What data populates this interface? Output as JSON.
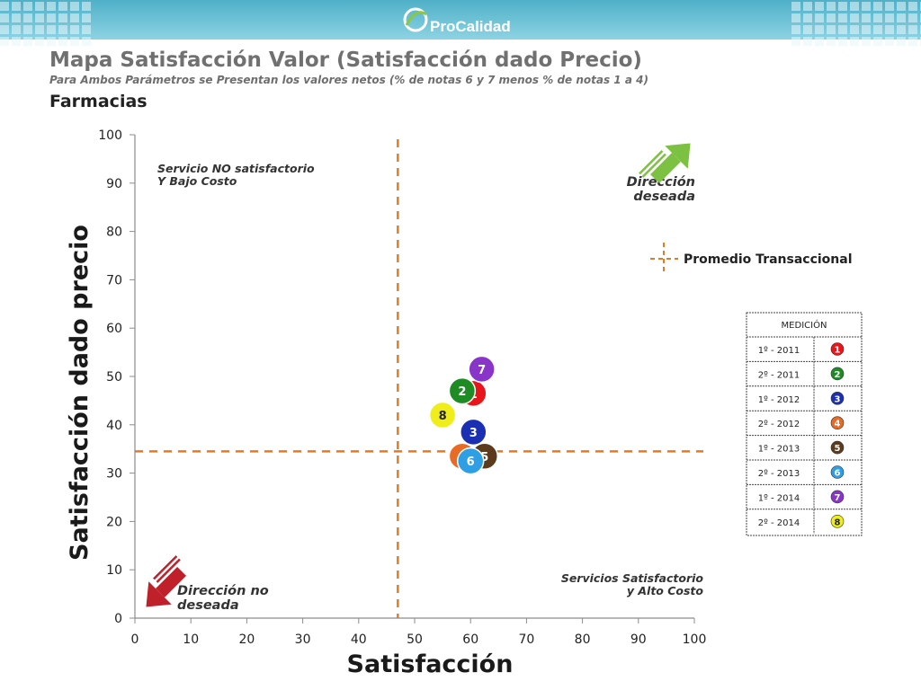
{
  "header": {
    "brand": "ProCalidad",
    "brand_prefix": "Pro",
    "brand_suffix": "Calidad",
    "title": "Mapa Satisfacción Valor (Satisfacción dado Precio)",
    "subtitle": "Para Ambos Parámetros se Presentan los valores netos (% de notas 6 y 7 menos % de notas 1 a 4)",
    "section": "Farmacias"
  },
  "colors": {
    "banner_teal": "#5bbad1",
    "brand_green": "#8fc640",
    "guide_line": "#e07b2a",
    "arrow_green": "#7dc142",
    "arrow_red": "#c0202a"
  },
  "quadrants": {
    "top_left": [
      "Servicio NO satisfactorio",
      "Y Bajo Costo"
    ],
    "bottom_right": [
      "Servicios Satisfactorio",
      "y Alto Costo"
    ],
    "desired": [
      "Dirección",
      "deseada"
    ],
    "undesired": [
      "Dirección no",
      "deseada"
    ]
  },
  "legend": {
    "average_label": "Promedio Transaccional",
    "table_header": "MEDICIÓN"
  },
  "chart_data": {
    "type": "scatter",
    "title": "Mapa Satisfacción Valor (Satisfacción dado Precio)",
    "xlabel": "Satisfacción",
    "ylabel": "Satisfacción dado precio",
    "xlim": [
      0,
      100
    ],
    "ylim": [
      0,
      100
    ],
    "xticks": [
      0,
      10,
      20,
      30,
      40,
      50,
      60,
      70,
      80,
      90,
      100
    ],
    "yticks": [
      0,
      10,
      20,
      30,
      40,
      50,
      60,
      70,
      80,
      90,
      100
    ],
    "grid": false,
    "reference_lines": {
      "average_x": 47,
      "average_y": 34.5
    },
    "series": [
      {
        "name": "1º - 2011",
        "label": "1",
        "color": "#e8151b",
        "x": 60.5,
        "y": 46.5
      },
      {
        "name": "2º - 2011",
        "label": "2",
        "color": "#1f8b25",
        "x": 58.5,
        "y": 47
      },
      {
        "name": "1º - 2012",
        "label": "3",
        "color": "#1a2fb3",
        "x": 60.5,
        "y": 38.5
      },
      {
        "name": "2º - 2012",
        "label": "4",
        "color": "#e86a24",
        "x": 58.5,
        "y": 33.5
      },
      {
        "name": "1º - 2013",
        "label": "5",
        "color": "#5c3a1e",
        "x": 62.5,
        "y": 33.5
      },
      {
        "name": "2º - 2013",
        "label": "6",
        "color": "#2e9ee5",
        "x": 60,
        "y": 32.5
      },
      {
        "name": "1º - 2014",
        "label": "7",
        "color": "#8a35c9",
        "x": 62,
        "y": 51.5
      },
      {
        "name": "2º - 2014",
        "label": "8",
        "color": "#f0ee1a",
        "x": 55,
        "y": 42
      }
    ]
  }
}
